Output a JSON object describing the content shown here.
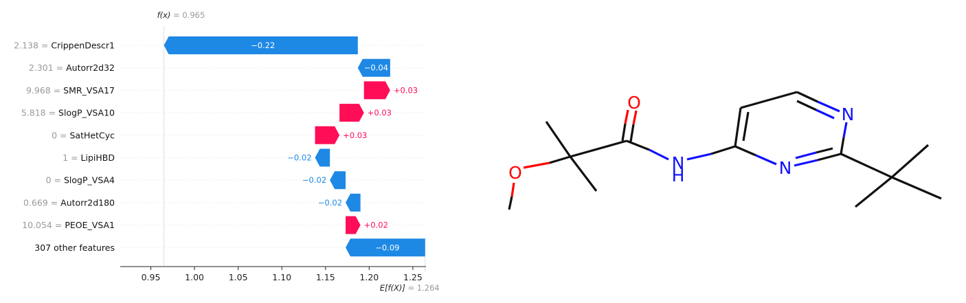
{
  "chart_data": {
    "type": "bar",
    "subtype": "shap-waterfall",
    "fx_label": "f(x)",
    "fx_value": "0.965",
    "base_label": "E[f(X)]",
    "base_value": "1.264",
    "xlim": [
      0.915,
      1.265
    ],
    "xticks": [
      "0.95",
      "1.00",
      "1.05",
      "1.10",
      "1.15",
      "1.20",
      "1.25"
    ],
    "features": [
      {
        "value": "2.138",
        "name": "CrippenDescr1",
        "start": 1.187,
        "end": 0.965,
        "label": "−0.22"
      },
      {
        "value": "2.301",
        "name": "Autorr2d32",
        "start": 1.224,
        "end": 1.187,
        "label": "−0.04"
      },
      {
        "value": "9.968",
        "name": "SMR_VSA17",
        "start": 1.194,
        "end": 1.224,
        "label": "+0.03"
      },
      {
        "value": "5.818",
        "name": "SlogP_VSA10",
        "start": 1.166,
        "end": 1.194,
        "label": "+0.03"
      },
      {
        "value": "0",
        "name": "SatHetCyc",
        "start": 1.138,
        "end": 1.166,
        "label": "+0.03"
      },
      {
        "value": "1",
        "name": "LipiHBD",
        "start": 1.155,
        "end": 1.138,
        "label": "−0.02"
      },
      {
        "value": "0",
        "name": "SlogP_VSA4",
        "start": 1.173,
        "end": 1.155,
        "label": "−0.02"
      },
      {
        "value": "0.669",
        "name": "Autorr2d180",
        "start": 1.19,
        "end": 1.173,
        "label": "−0.02"
      },
      {
        "value": "10.054",
        "name": "PEOE_VSA1",
        "start": 1.173,
        "end": 1.19,
        "label": "+0.02"
      },
      {
        "value": "",
        "name": "307 other features",
        "start": 1.264,
        "end": 1.173,
        "label": "−0.09"
      }
    ],
    "colors": {
      "positive": "#ff0d57",
      "negative": "#1e88e5",
      "value_text": "#999999",
      "grid": "#eeeeee"
    }
  },
  "molecule": {
    "atoms": {
      "O1": "O",
      "O2": "O",
      "NH": "N",
      "H": "H",
      "N3": "N",
      "N4": "N"
    },
    "colors": {
      "oxygen": "#ff0000",
      "nitrogen": "#1010ff",
      "carbon": "#111111"
    }
  }
}
